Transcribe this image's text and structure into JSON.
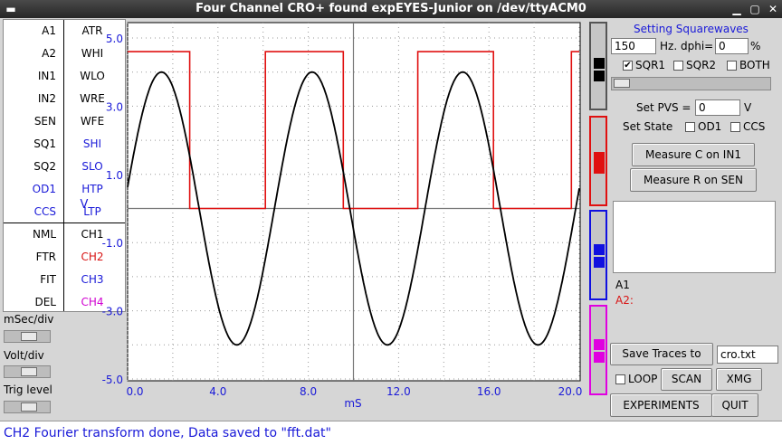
{
  "window": {
    "title": "Four Channel CRO+ found expEYES-Junior on /dev/ttyACM0"
  },
  "left_grid": {
    "rows": [
      {
        "a": "A1",
        "b": "ATR"
      },
      {
        "a": "A2",
        "b": "WHI"
      },
      {
        "a": "IN1",
        "b": "WLO"
      },
      {
        "a": "IN2",
        "b": "WRE"
      },
      {
        "a": "SEN",
        "b": "WFE"
      },
      {
        "a": "SQ1",
        "b": "SHI"
      },
      {
        "a": "SQ2",
        "b": "SLO"
      },
      {
        "a": "OD1",
        "b": "HTP"
      },
      {
        "a": "CCS",
        "b": "LTP"
      },
      {
        "a": "NML",
        "b": "CH1"
      },
      {
        "a": "FTR",
        "b": "CH2"
      },
      {
        "a": "FIT",
        "b": "CH3"
      },
      {
        "a": "DEL",
        "b": "CH4"
      }
    ]
  },
  "controls": {
    "msec_div": "mSec/div",
    "volt_div": "Volt/div",
    "trig_level": "Trig level"
  },
  "chart_data": {
    "type": "line",
    "xlabel": "mS",
    "ylabel": "V",
    "xlim": [
      0,
      20
    ],
    "ylim": [
      -5,
      5
    ],
    "x_ticks": [
      "0.0",
      "4.0",
      "8.0",
      "12.0",
      "16.0",
      "20.0"
    ],
    "y_ticks": [
      "5.0",
      "3.0",
      "1.0",
      "-1.0",
      "-3.0",
      "-5.0"
    ],
    "grid": true,
    "series": [
      {
        "channel": "CH1",
        "color": "#000000",
        "shape": "sine",
        "amplitude": 4.0,
        "period_ms": 6.67,
        "peak_ms": 1.5
      },
      {
        "channel": "CH2",
        "color": "#e01010",
        "shape": "square",
        "high": 4.6,
        "low": 0.0,
        "edges_ms": [
          2.75,
          6.1,
          9.55,
          12.85,
          16.2,
          19.65
        ],
        "start_high": true
      }
    ]
  },
  "right": {
    "setting_title": "Setting Squarewaves",
    "freq_value": "150",
    "freq_unit": "Hz.",
    "dphi_label": "dphi=",
    "dphi_value": "0",
    "dphi_unit": "%",
    "sqr1": "SQR1",
    "sqr1_checked": "✔",
    "sqr2": "SQR2",
    "both": "BOTH",
    "pvs_label": "Set PVS =",
    "pvs_value": "0",
    "pvs_unit": "V",
    "set_state": "Set State",
    "od1": "OD1",
    "ccs": "CCS",
    "measure_c": "Measure C on IN1",
    "measure_r": "Measure R on SEN",
    "a1": "A1",
    "a2": "A2:",
    "save_traces": "Save Traces to",
    "save_file": "cro.txt",
    "loop": "LOOP",
    "scan": "SCAN",
    "xmg": "XMG",
    "experiments": "EXPERIMENTS",
    "quit": "QUIT"
  },
  "channel_colors": {
    "ch1": "#000000",
    "ch2": "#e01010",
    "ch3": "#1010e0",
    "ch4": "#e000e0"
  },
  "status": "CH2 Fourier transform done, Data saved to \"fft.dat\""
}
